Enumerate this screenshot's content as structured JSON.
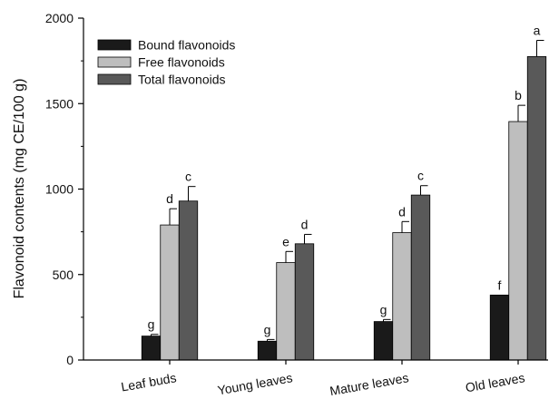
{
  "chart_data": {
    "type": "bar",
    "ylabel": "Flavonoid contents (mg CE/100 g)",
    "xlabel": "",
    "ylim": [
      0,
      2000
    ],
    "yticks": [
      0,
      500,
      1000,
      1500,
      2000
    ],
    "categories": [
      "Leaf buds",
      "Young leaves",
      "Mature leaves",
      "Old leaves"
    ],
    "legend_position": "top-left",
    "grid": false,
    "series": [
      {
        "name": "Bound flavonoids",
        "color": "#1a1a1a",
        "values": [
          140,
          110,
          225,
          380
        ],
        "errors": [
          10,
          10,
          12,
          0
        ],
        "letters": [
          "g",
          "g",
          "g",
          "f"
        ]
      },
      {
        "name": "Free flavonoids",
        "color": "#bebebe",
        "values": [
          790,
          570,
          745,
          1395
        ],
        "errors": [
          95,
          65,
          65,
          95
        ],
        "letters": [
          "d",
          "e",
          "d",
          "b"
        ]
      },
      {
        "name": "Total flavonoids",
        "color": "#595959",
        "values": [
          930,
          680,
          965,
          1775
        ],
        "errors": [
          85,
          55,
          55,
          95
        ],
        "letters": [
          "c",
          "d",
          "c",
          "a"
        ]
      }
    ]
  }
}
